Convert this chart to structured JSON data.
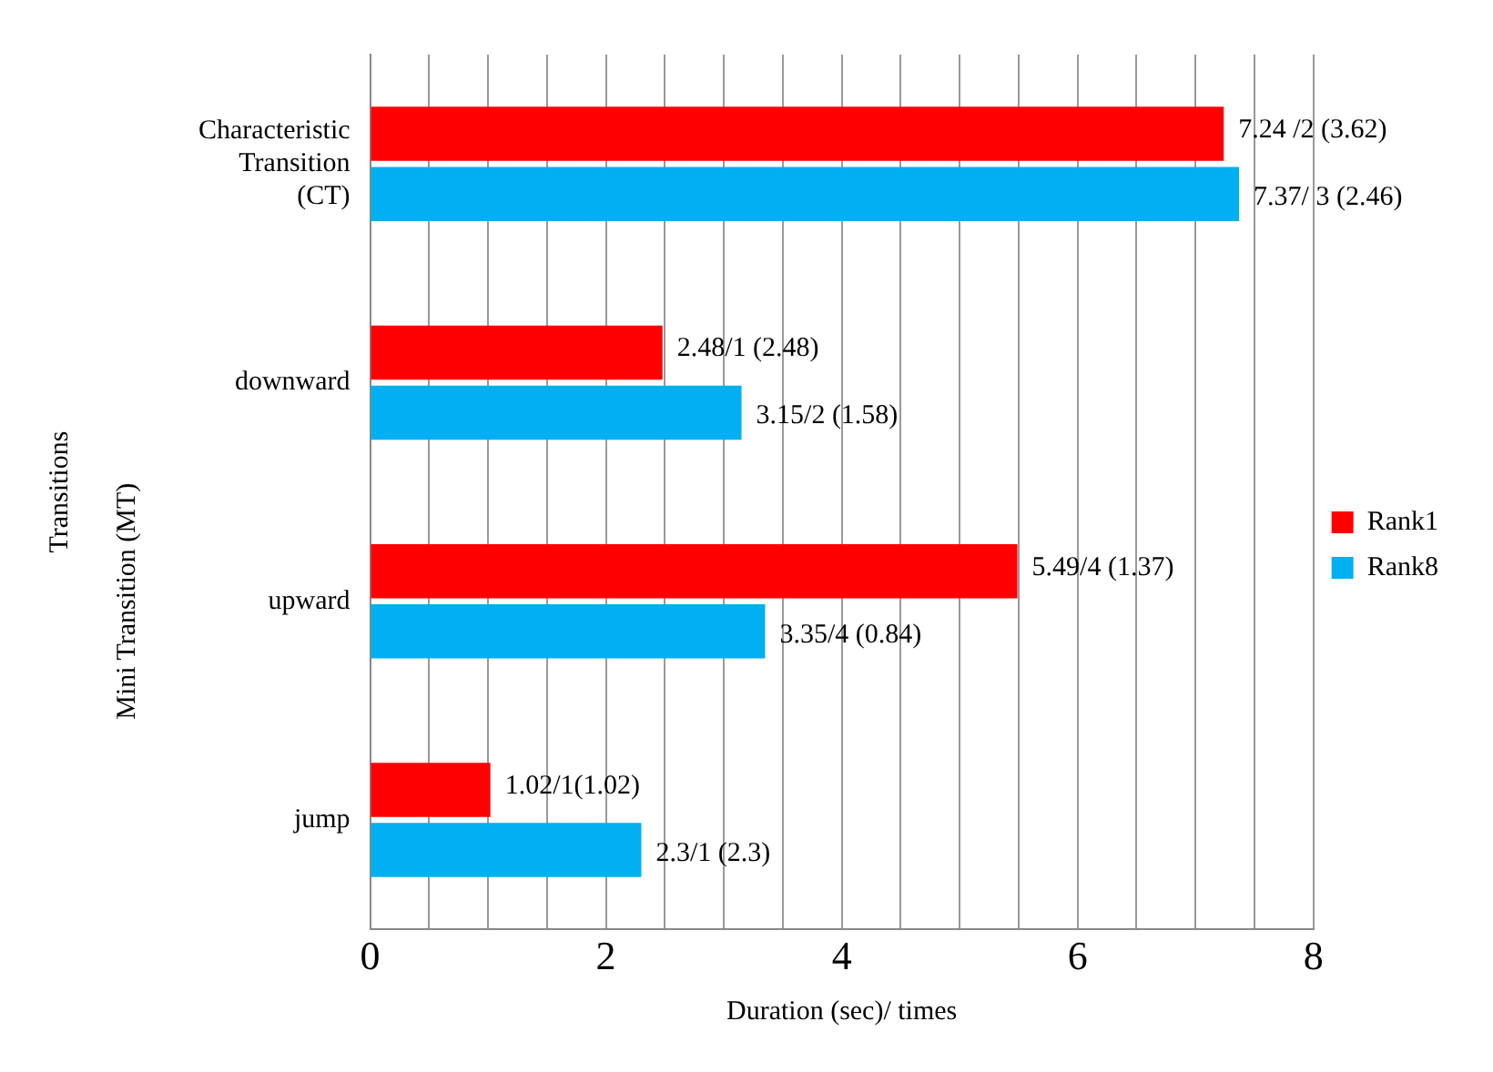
{
  "chart_data": {
    "type": "bar",
    "orientation": "horizontal",
    "xlabel": "Duration (sec)/ times",
    "ylabel": "Transitions",
    "categories": [
      "Characteristic Transition (CT)",
      "downward",
      "upward",
      "jump"
    ],
    "series": [
      {
        "name": "Rank1",
        "color": "#ff0000",
        "values": [
          7.24,
          2.48,
          5.49,
          1.02
        ],
        "value_labels": [
          "7.24 /2 (3.62)",
          "2.48/1 (2.48)",
          "5.49/4 (1.37)",
          "1.02/1(1.02)"
        ]
      },
      {
        "name": "Rank8",
        "color": "#00b0f0",
        "values": [
          7.37,
          3.15,
          3.35,
          2.3
        ],
        "value_labels": [
          "7.37/ 3 (2.46)",
          "3.15/2 (1.58)",
          "3.35/4 (0.84)",
          "2.3/1 (2.3)"
        ]
      }
    ],
    "xlim": [
      0,
      8
    ],
    "xticks": [
      0,
      {
        "value": 0.5,
        "label": null
      },
      {
        "value": 1,
        "label": null
      },
      {
        "value": 1.5,
        "label": null
      },
      2,
      {
        "value": 2.5,
        "label": null
      },
      {
        "value": 3,
        "label": null
      },
      {
        "value": 3.5,
        "label": null
      },
      4,
      {
        "value": 4.5,
        "label": null
      },
      {
        "value": 5,
        "label": null
      },
      {
        "value": 5.5,
        "label": null
      },
      6,
      {
        "value": 6.5,
        "label": null
      },
      {
        "value": 7,
        "label": null
      },
      {
        "value": 7.5,
        "label": null
      },
      8
    ],
    "grid": "x",
    "legend": "right",
    "annotations": [
      "Mini Transition (MT)"
    ]
  }
}
